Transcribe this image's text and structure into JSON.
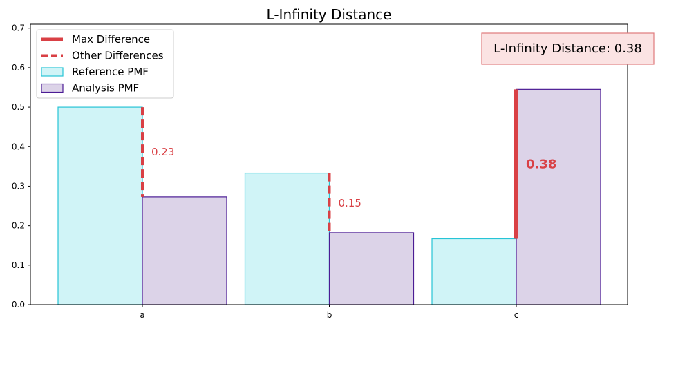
{
  "chart_data": {
    "type": "bar",
    "title": "L-Infinity Distance",
    "xlabel": "",
    "ylabel": "",
    "categories": [
      "a",
      "b",
      "c"
    ],
    "series": [
      {
        "name": "Reference PMF",
        "values": [
          0.5,
          0.333,
          0.167
        ],
        "fill": "#d0f4f7",
        "stroke": "#27c4d6"
      },
      {
        "name": "Analysis PMF",
        "values": [
          0.273,
          0.182,
          0.545
        ],
        "fill": "#dcd3e8",
        "stroke": "#4b1c94"
      }
    ],
    "ylim": [
      0,
      0.71
    ],
    "yticks": [
      0.0,
      0.1,
      0.2,
      0.3,
      0.4,
      0.5,
      0.6,
      0.7
    ],
    "ytick_labels": [
      "0.0",
      "0.1",
      "0.2",
      "0.3",
      "0.4",
      "0.5",
      "0.6",
      "0.7"
    ],
    "differences": [
      {
        "category": "a",
        "label": "0.23",
        "max": false
      },
      {
        "category": "b",
        "label": "0.15",
        "max": false
      },
      {
        "category": "c",
        "label": "0.38",
        "max": true
      }
    ],
    "legend": {
      "position": "top-left",
      "entries": [
        "Max Difference",
        "Other Differences",
        "Reference PMF",
        "Analysis PMF"
      ]
    },
    "annotation": "L-Infinity Distance: 0.38",
    "grid": false,
    "colors": {
      "difference": "#d94045",
      "annotation_fill": "#fbe3e3",
      "annotation_stroke": "#e07a7c"
    }
  }
}
